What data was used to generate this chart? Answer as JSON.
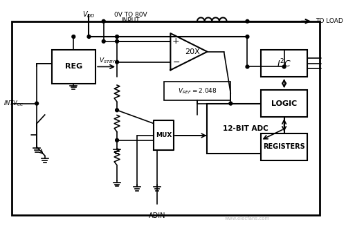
{
  "bg_color": "#ffffff",
  "border_color": "#000000",
  "line_color": "#000000",
  "text_color": "#000000",
  "fig_width": 5.0,
  "fig_height": 3.34,
  "dpi": 100,
  "watermark_text": "www.elecfans.com",
  "labels": {
    "VDD": "V_DD",
    "INTVCC": "INTV_CC",
    "VSTBY": "V_STBY",
    "VREF": "V_REF = 2.048",
    "input_label": "0V TO 80V\nINPUT",
    "to_load": "TO LOAD",
    "adin": "ADIN",
    "REG": "REG",
    "MUX": "MUX",
    "ADC": "12-BIT ADC",
    "I2C": "I²C",
    "LOGIC": "LOGIC",
    "REGISTERS": "REGISTERS",
    "gain": "20X",
    "plus": "+",
    "minus": "−"
  }
}
